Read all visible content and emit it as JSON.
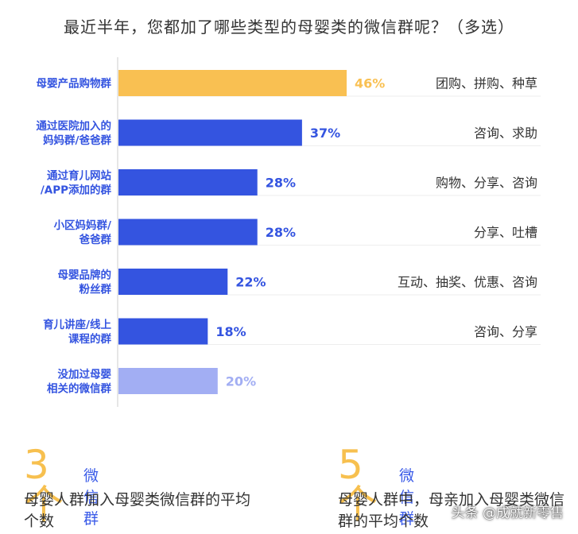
{
  "title": "最近半年，您都加了哪些类型的母婴类的微信群呢？（多选）",
  "chart_data": {
    "type": "bar",
    "orientation": "horizontal",
    "title": "最近半年，您都加了哪些类型的母婴类的微信群呢？（多选）",
    "unit": "%",
    "categories": [
      [
        "母婴产品购物群"
      ],
      [
        "通过医院加入的",
        "妈妈群/爸爸群"
      ],
      [
        "通过育儿网站",
        "/APP添加的群"
      ],
      [
        "小区妈妈群/",
        "爸爸群"
      ],
      [
        "母婴品牌的",
        "粉丝群"
      ],
      [
        "育儿讲座/线上",
        "课程的群"
      ],
      [
        "没加过母婴",
        "相关的微信群"
      ]
    ],
    "values": [
      46,
      37,
      28,
      28,
      22,
      18,
      20
    ],
    "value_labels": [
      "46%",
      "37%",
      "28%",
      "28%",
      "22%",
      "18%",
      "20%"
    ],
    "annotations": [
      "团购、拼购、种草",
      "咨询、求助",
      "购物、分享、咨询",
      "分享、吐槽",
      "互动、抽奖、优惠、咨询",
      "咨询、分享",
      ""
    ],
    "bar_colors": [
      "#F9C052",
      "#3454E0",
      "#3454E0",
      "#3454E0",
      "#3454E0",
      "#3454E0",
      "#A2AEF3"
    ],
    "label_colors": [
      "#F9C052",
      "#3454E0",
      "#3454E0",
      "#3454E0",
      "#3454E0",
      "#3454E0",
      "#A2AEF3"
    ],
    "category_color": "#3454E0",
    "annotation_color": "#333333",
    "xlim": [
      0,
      100
    ],
    "grid": false
  },
  "stats": [
    {
      "number": "3个",
      "unit": "微信群",
      "desc": "母婴人群加入母婴类微信群的平均个数"
    },
    {
      "number": "5个",
      "unit": "微信群",
      "desc": "母婴人群中，母亲加入母婴类微信群的平均个数"
    }
  ],
  "watermark": "头条 @成就新零售",
  "colors": {
    "accent_yellow": "#F7C04F",
    "accent_blue": "#3A5BE8",
    "text": "#333333"
  }
}
